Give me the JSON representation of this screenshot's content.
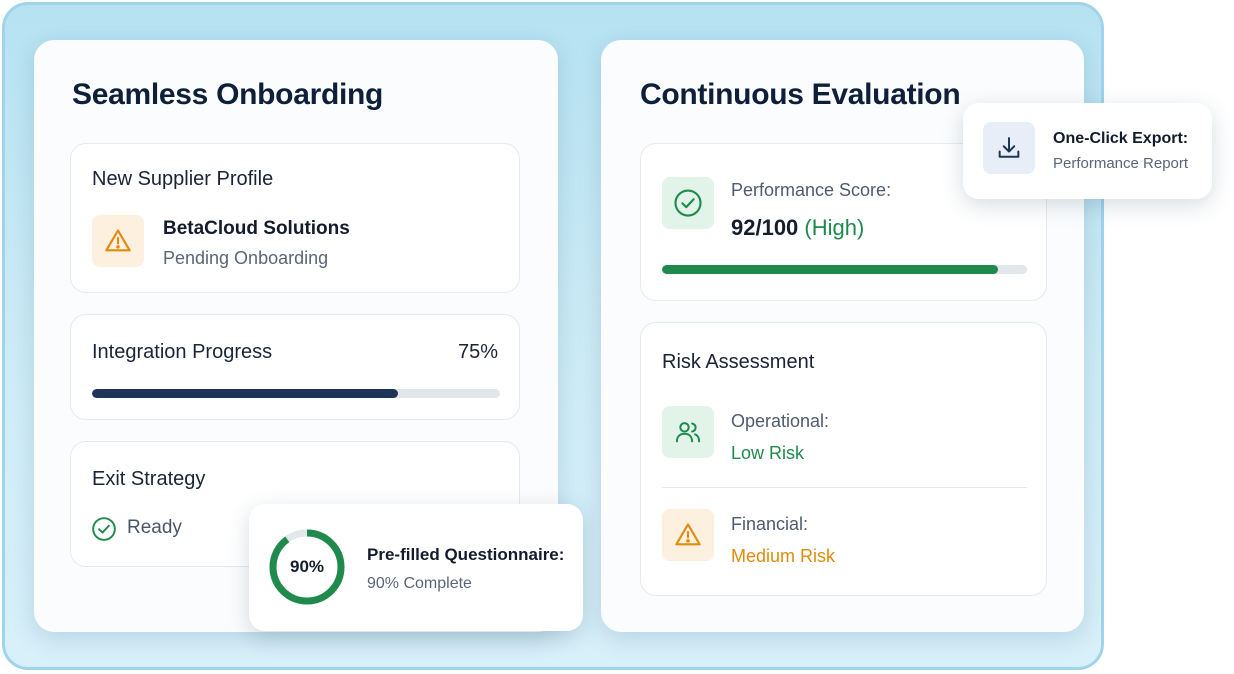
{
  "left_panel": {
    "title": "Seamless Onboarding",
    "supplier_card": {
      "title": "New Supplier Profile",
      "icon": "warning-icon",
      "name": "BetaCloud Solutions",
      "status": "Pending Onboarding"
    },
    "integration_card": {
      "title": "Integration Progress",
      "percent_label": "75%",
      "progress": 0.75
    },
    "exit_card": {
      "title": "Exit Strategy",
      "icon": "check-circle-icon",
      "status": "Ready"
    }
  },
  "questionnaire_popup": {
    "ring_label": "90%",
    "progress": 0.9,
    "title": "Pre-filled Questionnaire:",
    "subtitle": "90% Complete"
  },
  "right_panel": {
    "title": "Continuous Evaluation",
    "performance_card": {
      "icon": "check-circle-icon",
      "label": "Performance Score:",
      "score": "92/100",
      "rating": "(High)",
      "progress": 0.92
    },
    "risk_card": {
      "title": "Risk Assessment",
      "items": [
        {
          "icon": "users-icon",
          "label": "Operational:",
          "value": "Low Risk"
        },
        {
          "icon": "warning-icon",
          "label": "Financial:",
          "value": "Medium Risk"
        }
      ]
    }
  },
  "export_popup": {
    "icon": "download-icon",
    "title": "One-Click Export:",
    "subtitle": "Performance Report"
  },
  "colors": {
    "navy": "#1e3557",
    "green": "#1f8a4c",
    "amber": "#e08a0b",
    "track": "#e3e6ea"
  }
}
